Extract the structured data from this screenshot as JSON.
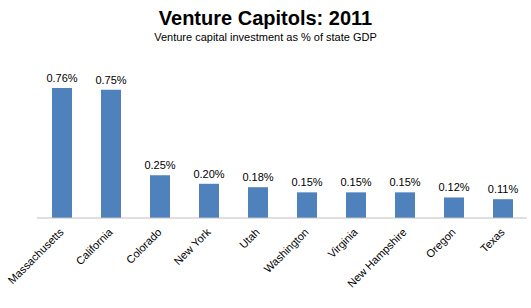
{
  "chart_data": {
    "type": "bar",
    "title": "Venture Capitols: 2011",
    "subtitle": "Venture capital investment as % of state GDP",
    "categories": [
      "Massachusetts",
      "California",
      "Colorado",
      "New York",
      "Utah",
      "Washington",
      "Virginia",
      "New Hampshire",
      "Oregon",
      "Texas"
    ],
    "values": [
      0.76,
      0.75,
      0.25,
      0.2,
      0.18,
      0.15,
      0.15,
      0.15,
      0.12,
      0.11
    ],
    "value_labels": [
      "0.76%",
      "0.75%",
      "0.25%",
      "0.20%",
      "0.18%",
      "0.15%",
      "0.15%",
      "0.15%",
      "0.12%",
      "0.11%"
    ],
    "color": "#4f81bd",
    "data_labels": true,
    "tick_labels": "x",
    "grid": false
  }
}
